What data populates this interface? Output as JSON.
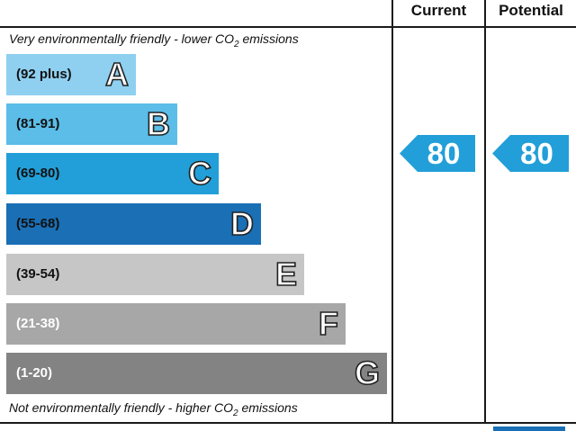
{
  "header": {
    "current_label": "Current",
    "potential_label": "Potential"
  },
  "notes": {
    "top_prefix": "Very environmentally friendly - lower C",
    "top_mid": "O",
    "top_sub": "2",
    "top_suffix": " emissions",
    "bottom_prefix": "Not environmentally friendly - higher C",
    "bottom_mid": "O",
    "bottom_sub": "2",
    "bottom_suffix": " emissions"
  },
  "bands": [
    {
      "range": "(92 plus)",
      "letter": "A",
      "color": "#8fd0f0",
      "range_color": "#111111"
    },
    {
      "range": "(81-91)",
      "letter": "B",
      "color": "#5bbde8",
      "range_color": "#111111"
    },
    {
      "range": "(69-80)",
      "letter": "C",
      "color": "#229fd8",
      "range_color": "#111111"
    },
    {
      "range": "(55-68)",
      "letter": "D",
      "color": "#1a6fb5",
      "range_color": "#111111"
    },
    {
      "range": "(39-54)",
      "letter": "E",
      "color": "#c6c6c6",
      "range_color": "#111111"
    },
    {
      "range": "(21-38)",
      "letter": "F",
      "color": "#a7a7a7",
      "range_color": "#ffffff"
    },
    {
      "range": "(1-20)",
      "letter": "G",
      "color": "#838383",
      "range_color": "#ffffff"
    }
  ],
  "ratings": {
    "current": "80",
    "potential": "80",
    "arrow_color": "#229fd8"
  }
}
